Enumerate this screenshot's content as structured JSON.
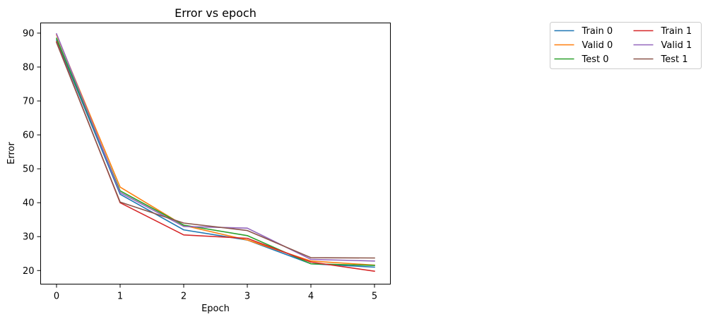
{
  "chart_data": {
    "type": "line",
    "title": "Error vs epoch",
    "xlabel": "Epoch",
    "ylabel": "Error",
    "x": [
      0,
      1,
      2,
      3,
      4,
      5
    ],
    "xlim": [
      -0.25,
      5.25
    ],
    "ylim": [
      16,
      93
    ],
    "xticks": [
      0,
      1,
      2,
      3,
      4,
      5
    ],
    "yticks": [
      20,
      30,
      40,
      50,
      60,
      70,
      80,
      90
    ],
    "grid": false,
    "legend_position": "outside-top-right",
    "legend_columns": 2,
    "series": [
      {
        "name": "Train 0",
        "color": "#1f77b4",
        "values": [
          88.0,
          42.5,
          32.0,
          29.0,
          22.0,
          21.0
        ]
      },
      {
        "name": "Valid 0",
        "color": "#ff7f0e",
        "values": [
          89.5,
          44.6,
          33.3,
          29.0,
          22.8,
          21.6
        ]
      },
      {
        "name": "Test 0",
        "color": "#2ca02c",
        "values": [
          88.5,
          43.5,
          33.4,
          30.3,
          22.0,
          21.5
        ]
      },
      {
        "name": "Train 1",
        "color": "#d62728",
        "values": [
          87.5,
          40.0,
          30.5,
          29.5,
          22.5,
          19.8
        ]
      },
      {
        "name": "Valid 1",
        "color": "#9467bd",
        "values": [
          89.8,
          43.0,
          33.0,
          32.5,
          23.3,
          22.8
        ]
      },
      {
        "name": "Test 1",
        "color": "#8c564b",
        "values": [
          87.2,
          40.2,
          34.0,
          31.8,
          23.8,
          23.7
        ]
      }
    ]
  }
}
